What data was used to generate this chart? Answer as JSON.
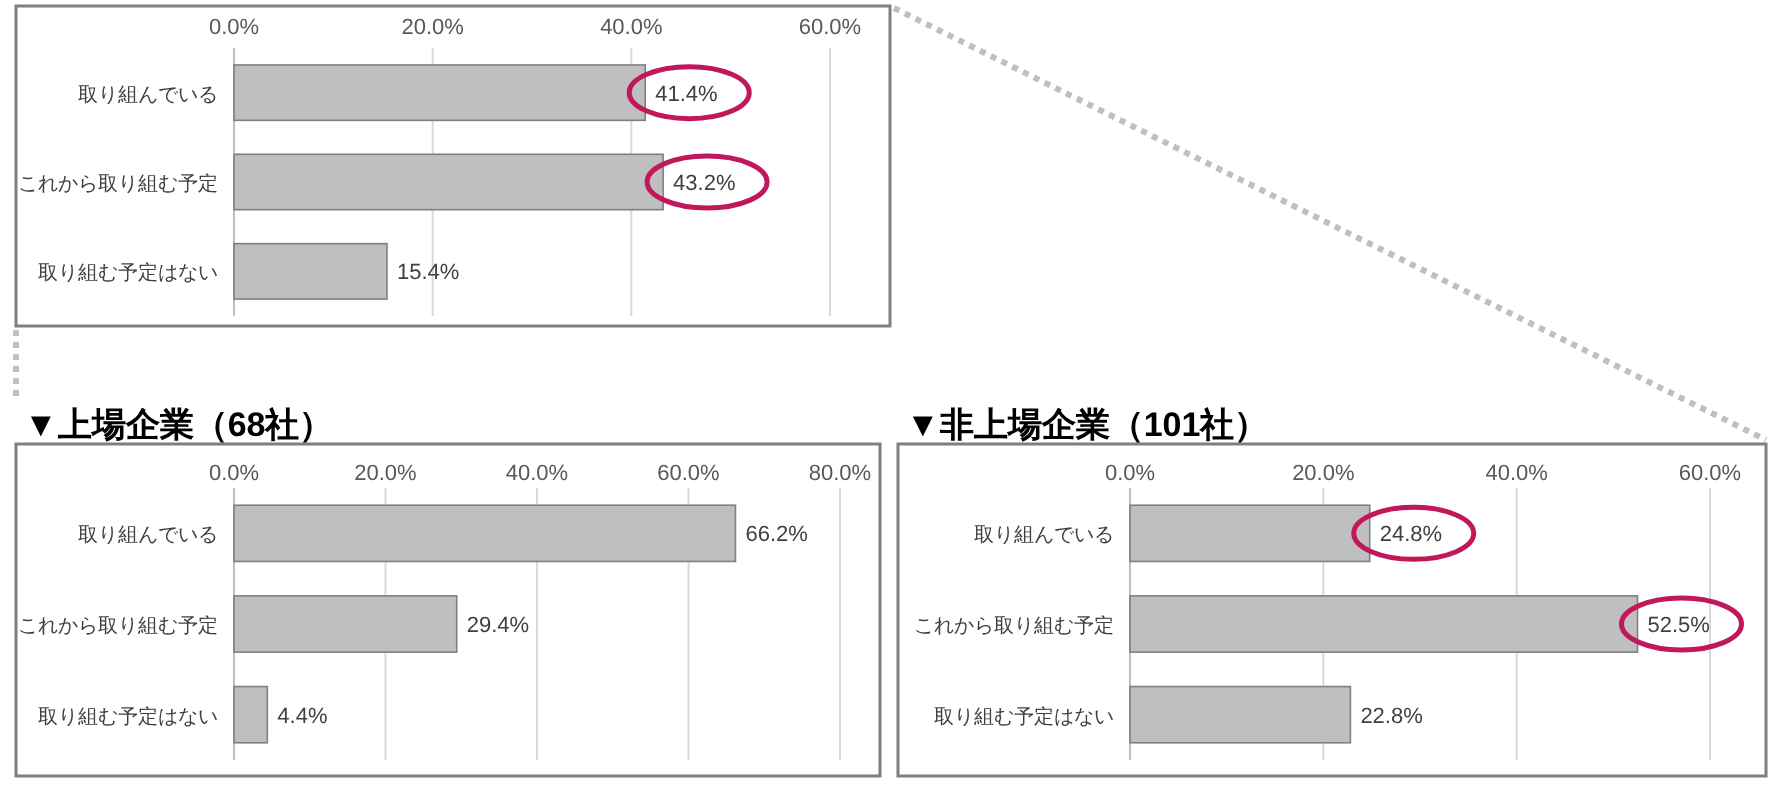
{
  "chart_data": [
    {
      "type": "bar",
      "orientation": "horizontal",
      "categories": [
        "取り組んでいる",
        "これから取り組む予定",
        "取り組む予定はない"
      ],
      "values": [
        41.4,
        43.2,
        15.4
      ],
      "value_labels": [
        "41.4%",
        "43.2%",
        "15.4%"
      ],
      "color": "#bfbfbf",
      "xlim": [
        0,
        60
      ],
      "xticks": [
        {
          "value": 0,
          "label": "0.0%"
        },
        {
          "value": 20,
          "label": "20.0%"
        },
        {
          "value": 40,
          "label": "40.0%"
        },
        {
          "value": 60,
          "label": "60.0%"
        }
      ],
      "grid": "x"
    },
    {
      "type": "bar",
      "orientation": "horizontal",
      "title": "▼上場企業（68社）",
      "categories": [
        "取り組んでいる",
        "これから取り組む予定",
        "取り組む予定はない"
      ],
      "values": [
        66.2,
        29.4,
        4.4
      ],
      "value_labels": [
        "66.2%",
        "29.4%",
        "4.4%"
      ],
      "color": "#bfbfbf",
      "xlim": [
        0,
        80
      ],
      "xticks": [
        {
          "value": 0,
          "label": "0.0%"
        },
        {
          "value": 20,
          "label": "20.0%"
        },
        {
          "value": 40,
          "label": "40.0%"
        },
        {
          "value": 60,
          "label": "60.0%"
        },
        {
          "value": 80,
          "label": "80.0%"
        }
      ],
      "grid": "x"
    },
    {
      "type": "bar",
      "orientation": "horizontal",
      "title": "▼非上場企業（101社）",
      "categories": [
        "取り組んでいる",
        "これから取り組む予定",
        "取り組む予定はない"
      ],
      "values": [
        24.8,
        52.5,
        22.8
      ],
      "value_labels": [
        "24.8%",
        "52.5%",
        "22.8%"
      ],
      "color": "#bfbfbf",
      "xlim": [
        0,
        60
      ],
      "xticks": [
        {
          "value": 0,
          "label": "0.0%"
        },
        {
          "value": 20,
          "label": "20.0%"
        },
        {
          "value": 40,
          "label": "40.0%"
        },
        {
          "value": 60,
          "label": "60.0%"
        }
      ],
      "grid": "x"
    }
  ]
}
